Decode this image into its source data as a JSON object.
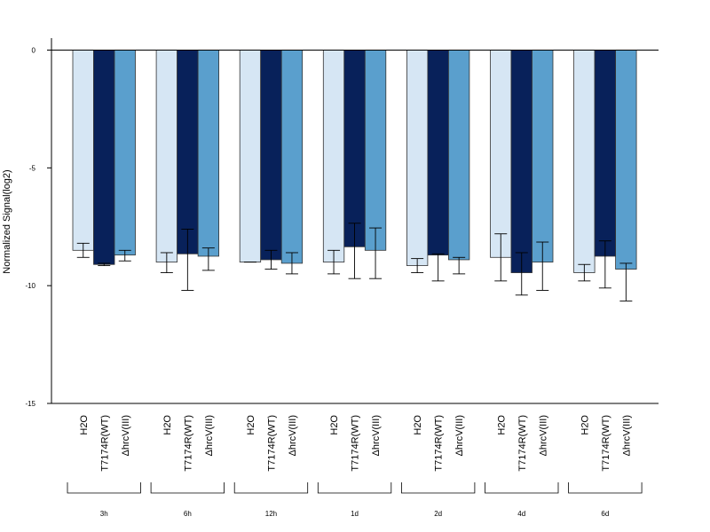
{
  "chart_data": {
    "type": "bar",
    "title": "",
    "xlabel": "",
    "ylabel": "Normalized Signal(log2)",
    "ylim": [
      -15,
      0.5
    ],
    "yticks": [
      0,
      -5,
      -10,
      -15
    ],
    "ytick_labels": [
      "0",
      "-5",
      "-10",
      "-15"
    ],
    "grid": false,
    "groups": [
      "3h",
      "6h",
      "12h",
      "1d",
      "2d",
      "4d",
      "6d"
    ],
    "series": [
      {
        "name": "H2O",
        "color": "#d6e6f4",
        "values": [
          -8.5,
          -9.0,
          -9.0,
          -9.0,
          -9.15,
          -8.8,
          -9.45
        ],
        "err_low": [
          -8.8,
          -9.45,
          -9.0,
          -9.5,
          -9.45,
          -9.8,
          -9.8
        ],
        "err_high": [
          -8.2,
          -8.6,
          -9.0,
          -8.5,
          -8.85,
          -7.8,
          -9.1
        ]
      },
      {
        "name": "T7174R(WT)",
        "color": "#08215a",
        "values": [
          -9.1,
          -8.65,
          -8.9,
          -8.35,
          -8.7,
          -9.45,
          -8.75
        ],
        "err_low": [
          -9.15,
          -10.2,
          -9.3,
          -9.7,
          -9.8,
          -10.4,
          -10.1
        ],
        "err_high": [
          -9.05,
          -7.6,
          -8.5,
          -7.35,
          -8.65,
          -8.6,
          -8.1
        ]
      },
      {
        "name": "ΔhrcV(III)",
        "color": "#5a9fcd",
        "values": [
          -8.7,
          -8.75,
          -9.05,
          -8.5,
          -8.9,
          -9.0,
          -9.3
        ],
        "err_low": [
          -8.95,
          -9.35,
          -9.5,
          -9.7,
          -9.5,
          -10.2,
          -10.65
        ],
        "err_high": [
          -8.5,
          -8.4,
          -8.6,
          -7.55,
          -8.8,
          -8.15,
          -9.05
        ]
      }
    ],
    "bar_labels": [
      "H2O",
      "T7174R(WT)",
      "ΔhrcV(III)"
    ]
  }
}
